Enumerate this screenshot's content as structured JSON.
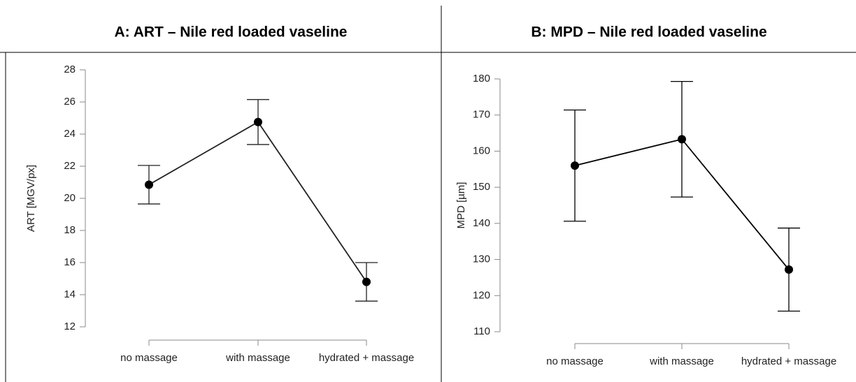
{
  "chart_data": [
    {
      "type": "line",
      "title": "A: ART – Nile red loaded vaseline",
      "ylabel": "ART [MGV/px]",
      "categories": [
        "no massage",
        "with massage",
        "hydrated + massage"
      ],
      "values": [
        20.85,
        24.75,
        14.8
      ],
      "errors": [
        1.2,
        1.4,
        1.2
      ],
      "color": "#222222",
      "ylim": [
        12,
        28
      ],
      "yticks": [
        12,
        14,
        16,
        18,
        20,
        22,
        24,
        26,
        28
      ]
    },
    {
      "type": "line",
      "title": "B: MPD – Nile red loaded vaseline",
      "ylabel": "MPD [µm]",
      "categories": [
        "no massage",
        "with massage",
        "hydrated + massage"
      ],
      "values": [
        156,
        163.3,
        127.2
      ],
      "errors": [
        15.4,
        16,
        11.5
      ],
      "color": "#000000",
      "ylim": [
        110,
        180
      ],
      "yticks": [
        110,
        120,
        130,
        140,
        150,
        160,
        170,
        180
      ]
    }
  ]
}
